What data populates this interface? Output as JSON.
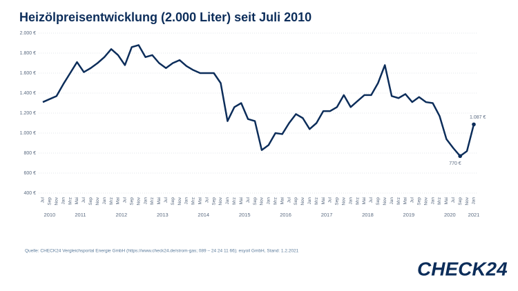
{
  "chart_data": {
    "type": "line",
    "title": "Heizölpreisentwicklung (2.000 Liter) seit Juli 2010",
    "categories": [
      "Jul",
      "Sep",
      "Nov",
      "Jan",
      "Mrz",
      "Mai",
      "Jul",
      "Sep",
      "Nov",
      "Jan",
      "Mrz",
      "Mai",
      "Jul",
      "Sep",
      "Nov",
      "Jan",
      "Mrz",
      "Mai",
      "Jul",
      "Sep",
      "Nov",
      "Jan",
      "Mrz",
      "Mai",
      "Jul",
      "Sep",
      "Nov",
      "Jan",
      "Mrz",
      "Mai",
      "Jul",
      "Sep",
      "Nov",
      "Jan",
      "Mrz",
      "Mai",
      "Jul",
      "Sep",
      "Nov",
      "Jan",
      "Mrz",
      "Mai",
      "Jul",
      "Sep",
      "Nov",
      "Jan",
      "Mrz",
      "Mai",
      "Jul",
      "Sep",
      "Nov",
      "Jan",
      "Mrz",
      "Mai",
      "Jul",
      "Sep",
      "Nov",
      "Jan",
      "Mrz",
      "Mai",
      "Jul",
      "Sep",
      "Nov",
      "Jan"
    ],
    "years": [
      "2010",
      "2011",
      "2012",
      "2013",
      "2014",
      "2015",
      "2016",
      "2017",
      "2018",
      "2019",
      "2020",
      "2021"
    ],
    "series": [
      {
        "name": "Heizölpreis",
        "color": "#0c2d5a",
        "values": [
          1310,
          1340,
          1370,
          1490,
          1600,
          1710,
          1610,
          1650,
          1700,
          1760,
          1840,
          1780,
          1680,
          1860,
          1880,
          1760,
          1780,
          1700,
          1650,
          1700,
          1730,
          1670,
          1630,
          1600,
          1600,
          1600,
          1500,
          1120,
          1260,
          1300,
          1140,
          1120,
          830,
          880,
          1000,
          990,
          1100,
          1190,
          1150,
          1040,
          1100,
          1220,
          1220,
          1260,
          1380,
          1260,
          1320,
          1380,
          1380,
          1500,
          1680,
          1370,
          1350,
          1390,
          1310,
          1360,
          1310,
          1300,
          1170,
          940,
          850,
          770,
          820,
          1087
        ]
      }
    ],
    "annotations": [
      "1.087 €",
      "770 €"
    ],
    "ylim": [
      400,
      2000
    ],
    "yticks": [
      {
        "value": 400,
        "label": "400 €"
      },
      {
        "value": 600,
        "label": "600 €"
      },
      {
        "value": 800,
        "label": "800 €"
      },
      {
        "value": 1000,
        "label": "1.000 €"
      },
      {
        "value": 1200,
        "label": "1.200 €"
      },
      {
        "value": 1400,
        "label": "1.400 €"
      },
      {
        "value": 1600,
        "label": "1.600 €"
      },
      {
        "value": 1800,
        "label": "1.800 €"
      },
      {
        "value": 2000,
        "label": "2.000 €"
      }
    ],
    "grid": true,
    "source": "Quelle: CHECK24 Vergleichsportal Energie GmbH (https://www.check24.de/strom-gas; 089 – 24 24 11 66); esyoil GmbH, Stand: 1.2.2021",
    "logo": "CHECK24"
  }
}
